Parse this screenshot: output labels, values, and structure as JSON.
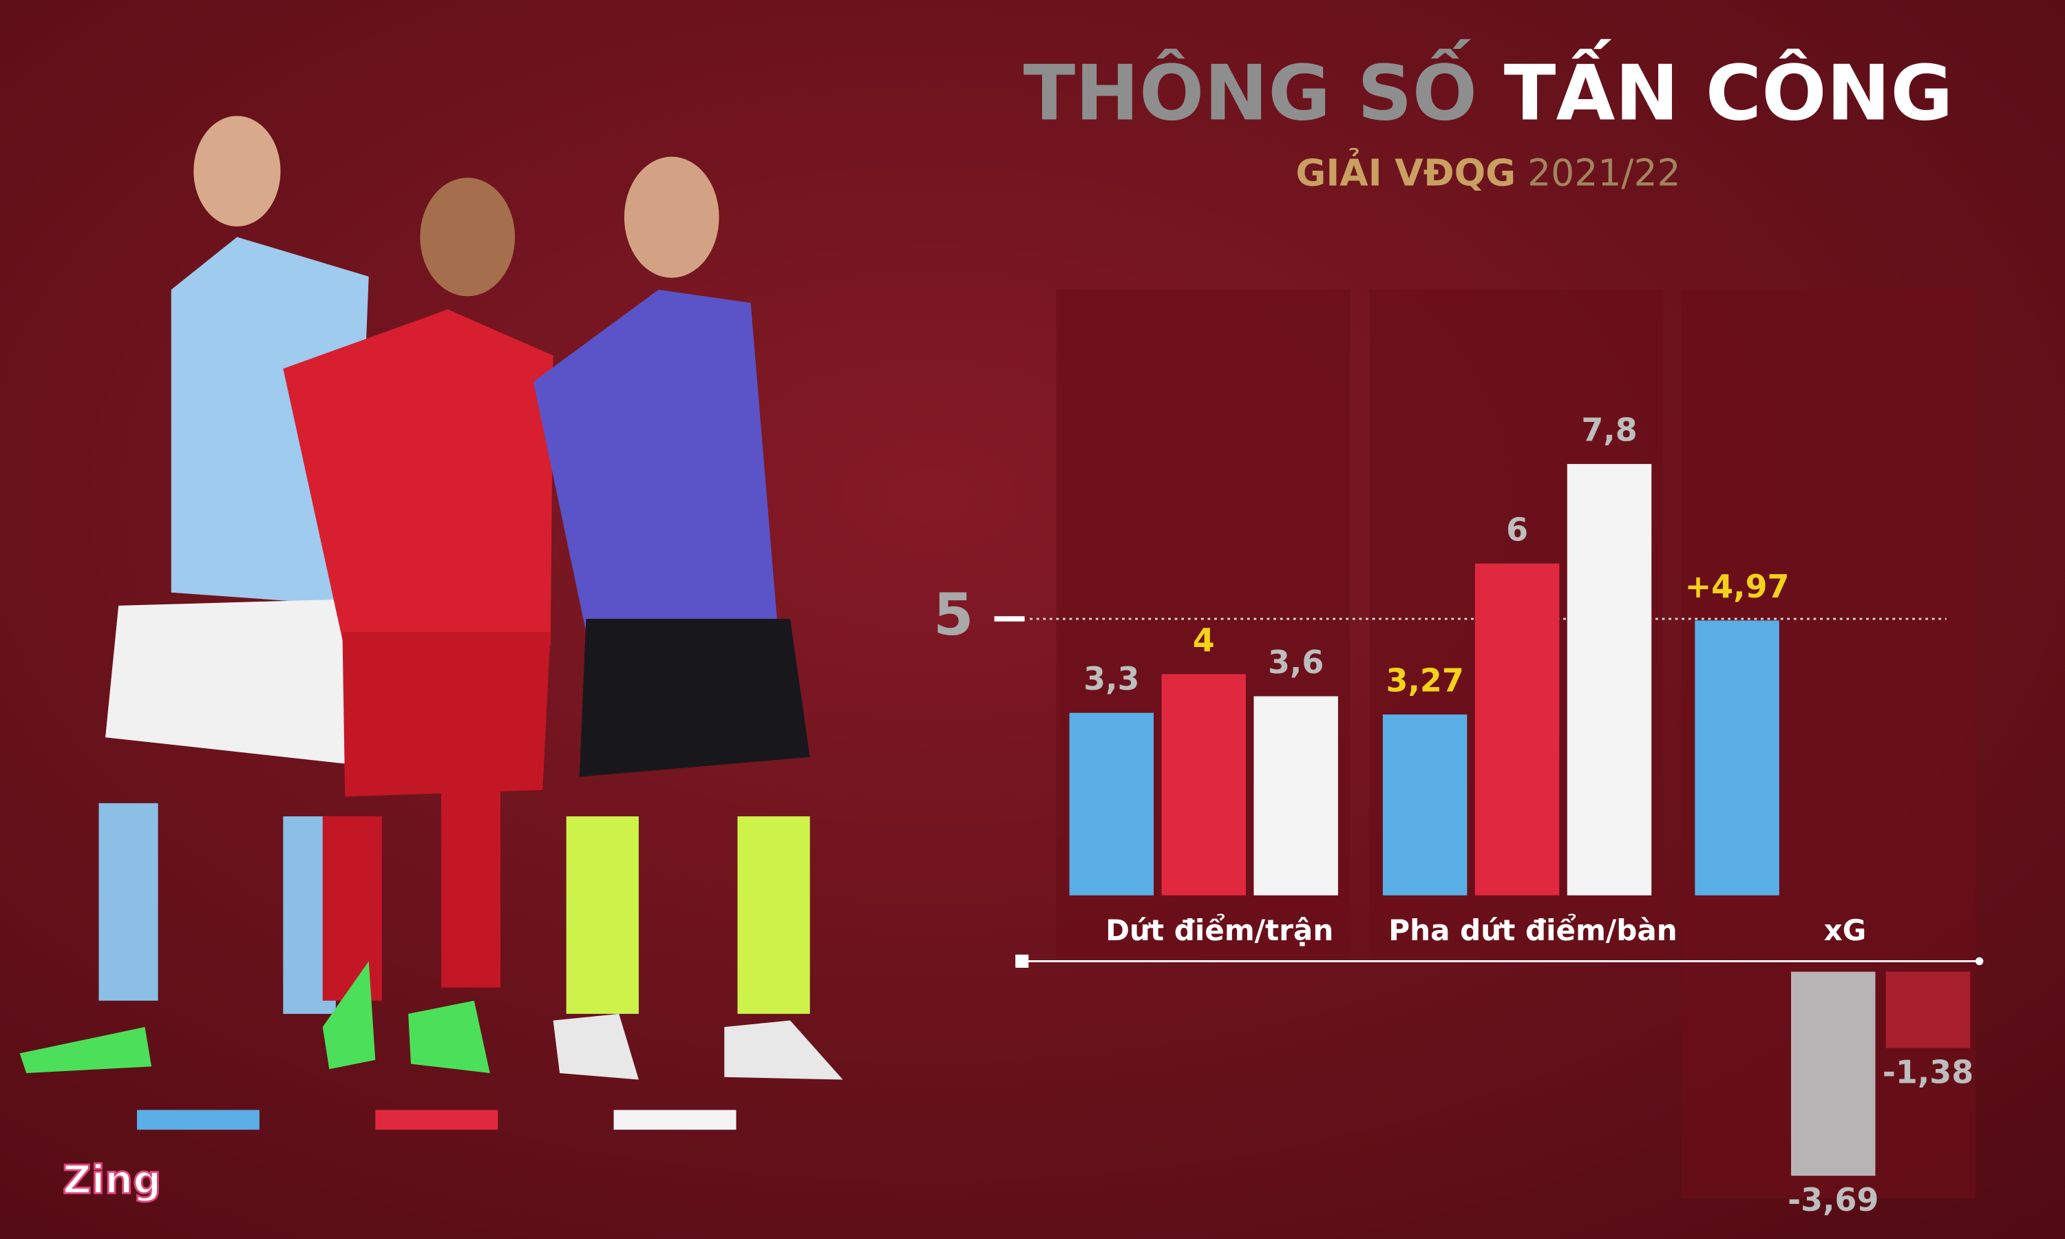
{
  "chart_data": {
    "type": "bar",
    "title": [
      "THÔNG SỐ",
      "TẤN CÔNG"
    ],
    "title_colors": [
      "#8e8e8e",
      "#ffffff"
    ],
    "subtitle": [
      "GIẢI VĐQG",
      "2021/22"
    ],
    "subtitle_colors": [
      "#c9a062",
      "#a3845f"
    ],
    "categories": [
      "Dứt điểm/trận",
      "Pha dứt điểm/bàn",
      "xG"
    ],
    "series": [
      {
        "color": "#5aaee6",
        "values": [
          3.3,
          3.27,
          4.97
        ],
        "value_labels": [
          "3,3",
          "3,27",
          "+4,97"
        ],
        "value_label_colors": [
          "#bdbdbd",
          "#f5d21a",
          "#f5d21a"
        ]
      },
      {
        "color": "#e0293e",
        "negative_color": "#a8202e",
        "values": [
          4,
          6,
          -1.38
        ],
        "value_labels": [
          "4",
          "6",
          "-1,38"
        ],
        "value_label_colors": [
          "#f5d21a",
          "#bdbdbd",
          "#bdbdbd"
        ]
      },
      {
        "color": "#f4f4f4",
        "negative_color": "#b8b4b5",
        "values": [
          3.6,
          7.8,
          -3.69
        ],
        "value_labels": [
          "3,6",
          "7,8",
          "-3,69"
        ],
        "value_label_colors": [
          "#bdbdbd",
          "#bdbdbd",
          "#bdbdbd"
        ]
      }
    ],
    "ylim": [
      0,
      10
    ],
    "yticks": [
      5
    ],
    "logo": "Zing"
  }
}
